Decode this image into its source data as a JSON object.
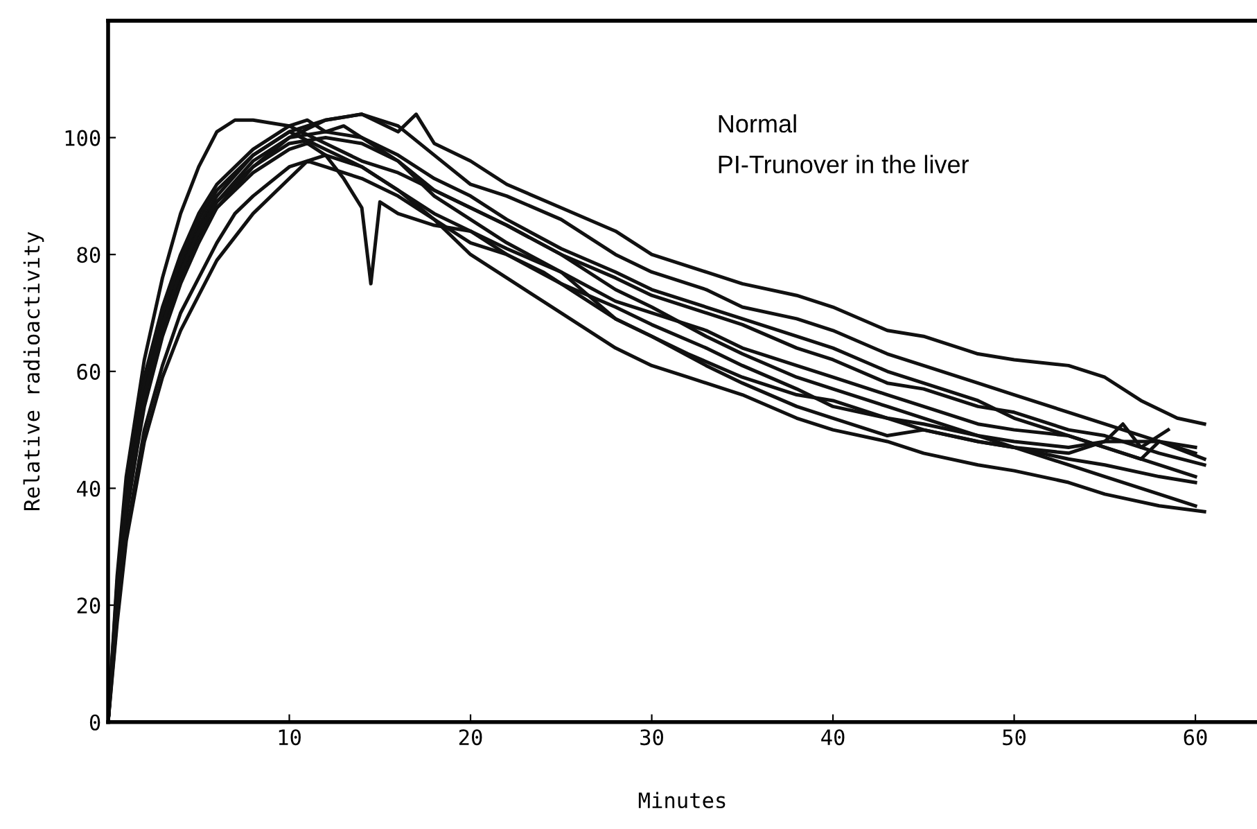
{
  "chart_data": {
    "type": "line",
    "xlabel": "Minutes",
    "ylabel": "Relative radioactivity",
    "annotations": [
      "Normal",
      "PI-Trunover in the liver"
    ],
    "xlim": [
      0,
      63.4
    ],
    "ylim": [
      0,
      120
    ],
    "xticks": [
      10,
      20,
      30,
      40,
      50,
      60
    ],
    "yticks": [
      0,
      20,
      40,
      60,
      80,
      100
    ],
    "grid": false,
    "legend": false,
    "marker": "none",
    "line_style": "solid",
    "series": [
      {
        "color": "#111111",
        "x": [
          0,
          0.5,
          1,
          2,
          3,
          4,
          5,
          6,
          7,
          8,
          10,
          12,
          14,
          16,
          18,
          20,
          22,
          25,
          28,
          30,
          33,
          35,
          38,
          40,
          43,
          45,
          48,
          50,
          53,
          55,
          58,
          60
        ],
        "values": [
          0,
          25,
          42,
          62,
          76,
          87,
          95,
          101,
          103,
          103,
          102,
          99,
          96,
          94,
          91,
          88,
          85,
          80,
          74,
          71,
          66,
          63,
          59,
          57,
          54,
          52,
          49,
          47,
          45,
          44,
          42,
          41
        ]
      },
      {
        "color": "#111111",
        "x": [
          0,
          0.5,
          1,
          2,
          3,
          4,
          5,
          6,
          8,
          10,
          12,
          14,
          16,
          17,
          18,
          20,
          22,
          25,
          28,
          30,
          33,
          35,
          38,
          40,
          43,
          45,
          48,
          50,
          53,
          55,
          57,
          59,
          60.5
        ],
        "values": [
          0,
          20,
          35,
          55,
          67,
          76,
          83,
          88,
          95,
          100,
          103,
          104,
          101,
          104,
          99,
          96,
          92,
          88,
          84,
          80,
          77,
          75,
          73,
          71,
          67,
          66,
          63,
          62,
          61,
          59,
          55,
          52,
          51
        ]
      },
      {
        "color": "#111111",
        "x": [
          0,
          0.5,
          1,
          2,
          3,
          4,
          5,
          6,
          8,
          10,
          12,
          14,
          16,
          18,
          20,
          22,
          25,
          28,
          30,
          33,
          35,
          38,
          40,
          43,
          45,
          48,
          50,
          53,
          55,
          58,
          60.5
        ],
        "values": [
          0,
          22,
          38,
          57,
          69,
          78,
          85,
          90,
          97,
          101,
          103,
          104,
          102,
          97,
          92,
          90,
          86,
          80,
          77,
          74,
          71,
          69,
          67,
          63,
          61,
          58,
          56,
          53,
          51,
          48,
          45
        ]
      },
      {
        "color": "#111111",
        "x": [
          0,
          0.5,
          1,
          2,
          3,
          4,
          5,
          6,
          8,
          10,
          11,
          12,
          14,
          16,
          18,
          20,
          22,
          25,
          28,
          30,
          33,
          35,
          38,
          40,
          43,
          45,
          48,
          50,
          53,
          55,
          58,
          60.5
        ],
        "values": [
          0,
          24,
          40,
          59,
          71,
          80,
          87,
          92,
          98,
          102,
          103,
          101,
          100,
          96,
          91,
          88,
          85,
          80,
          76,
          73,
          70,
          68,
          64,
          62,
          58,
          57,
          54,
          53,
          50,
          49,
          46,
          44
        ]
      },
      {
        "color": "#111111",
        "x": [
          0,
          0.5,
          1,
          2,
          3,
          4,
          5,
          6,
          8,
          10,
          12,
          14,
          16,
          18,
          20,
          22,
          24,
          26,
          28,
          30,
          32,
          35,
          38,
          40,
          43,
          45,
          48,
          50,
          53,
          55,
          58,
          60
        ],
        "values": [
          0,
          23,
          39,
          58,
          70,
          79,
          86,
          91,
          97,
          101,
          98,
          95,
          91,
          87,
          84,
          80,
          77,
          73,
          69,
          66,
          63,
          59,
          56,
          55,
          52,
          50,
          48,
          47,
          44,
          42,
          39,
          37
        ]
      },
      {
        "color": "#111111",
        "x": [
          0,
          0.5,
          1,
          2,
          3,
          4,
          5,
          6,
          8,
          10,
          11,
          12,
          14,
          16,
          18,
          20,
          22,
          24,
          26,
          28,
          30,
          32,
          35,
          38,
          40,
          43,
          45,
          48,
          50,
          53,
          55,
          58,
          60.5
        ],
        "values": [
          0,
          21,
          36,
          54,
          66,
          75,
          82,
          88,
          94,
          98,
          99,
          97,
          95,
          91,
          86,
          80,
          76,
          72,
          68,
          64,
          61,
          59,
          56,
          52,
          50,
          48,
          46,
          44,
          43,
          41,
          39,
          37,
          36
        ]
      },
      {
        "color": "#111111",
        "x": [
          0,
          0.5,
          1,
          2,
          3,
          4,
          5,
          6,
          8,
          10,
          12,
          14,
          16,
          18,
          20,
          22,
          25,
          28,
          30,
          33,
          35,
          38,
          40,
          43,
          45,
          48,
          50,
          53,
          55,
          57,
          58,
          60
        ],
        "values": [
          0,
          22,
          37,
          56,
          68,
          77,
          84,
          89,
          95,
          99,
          100,
          99,
          96,
          90,
          86,
          82,
          77,
          72,
          70,
          67,
          64,
          61,
          59,
          56,
          54,
          51,
          50,
          49,
          47,
          45,
          48,
          46
        ]
      },
      {
        "color": "#111111",
        "x": [
          0,
          0.5,
          1,
          2,
          3,
          4,
          5,
          6,
          7,
          8,
          10,
          12,
          13,
          14,
          14.5,
          15,
          16,
          18,
          20,
          22,
          25,
          28,
          30,
          33,
          35,
          38,
          40,
          43,
          45,
          48,
          50,
          53,
          55,
          56,
          57,
          58.5
        ],
        "values": [
          0,
          18,
          32,
          50,
          61,
          70,
          76,
          82,
          87,
          90,
          95,
          97,
          93,
          88,
          75,
          89,
          87,
          85,
          84,
          81,
          77,
          69,
          66,
          61,
          58,
          54,
          52,
          49,
          50,
          48,
          47,
          46,
          48,
          51,
          47,
          50
        ]
      },
      {
        "color": "#111111",
        "x": [
          0,
          0.5,
          1,
          2,
          3,
          4,
          5,
          6,
          8,
          10,
          12,
          13,
          14,
          16,
          18,
          20,
          22,
          25,
          28,
          30,
          33,
          35,
          38,
          40,
          43,
          45,
          48,
          50,
          53,
          55,
          58,
          60
        ],
        "values": [
          0,
          21,
          37,
          56,
          68,
          77,
          84,
          89,
          96,
          100,
          101,
          102,
          100,
          97,
          93,
          90,
          86,
          81,
          77,
          74,
          71,
          69,
          66,
          64,
          60,
          58,
          55,
          52,
          49,
          47,
          44,
          42
        ]
      },
      {
        "color": "#111111",
        "x": [
          0,
          0.5,
          1,
          2,
          3,
          4,
          5,
          6,
          8,
          10,
          11,
          12,
          14,
          16,
          18,
          20,
          22,
          25,
          28,
          30,
          33,
          35,
          38,
          40,
          43,
          45,
          48,
          50,
          53,
          55,
          58,
          60
        ],
        "values": [
          0,
          17,
          31,
          48,
          59,
          67,
          73,
          79,
          87,
          93,
          96,
          95,
          93,
          90,
          86,
          82,
          80,
          75,
          71,
          68,
          64,
          61,
          57,
          54,
          52,
          51,
          49,
          48,
          47,
          48,
          48,
          47
        ]
      }
    ]
  }
}
